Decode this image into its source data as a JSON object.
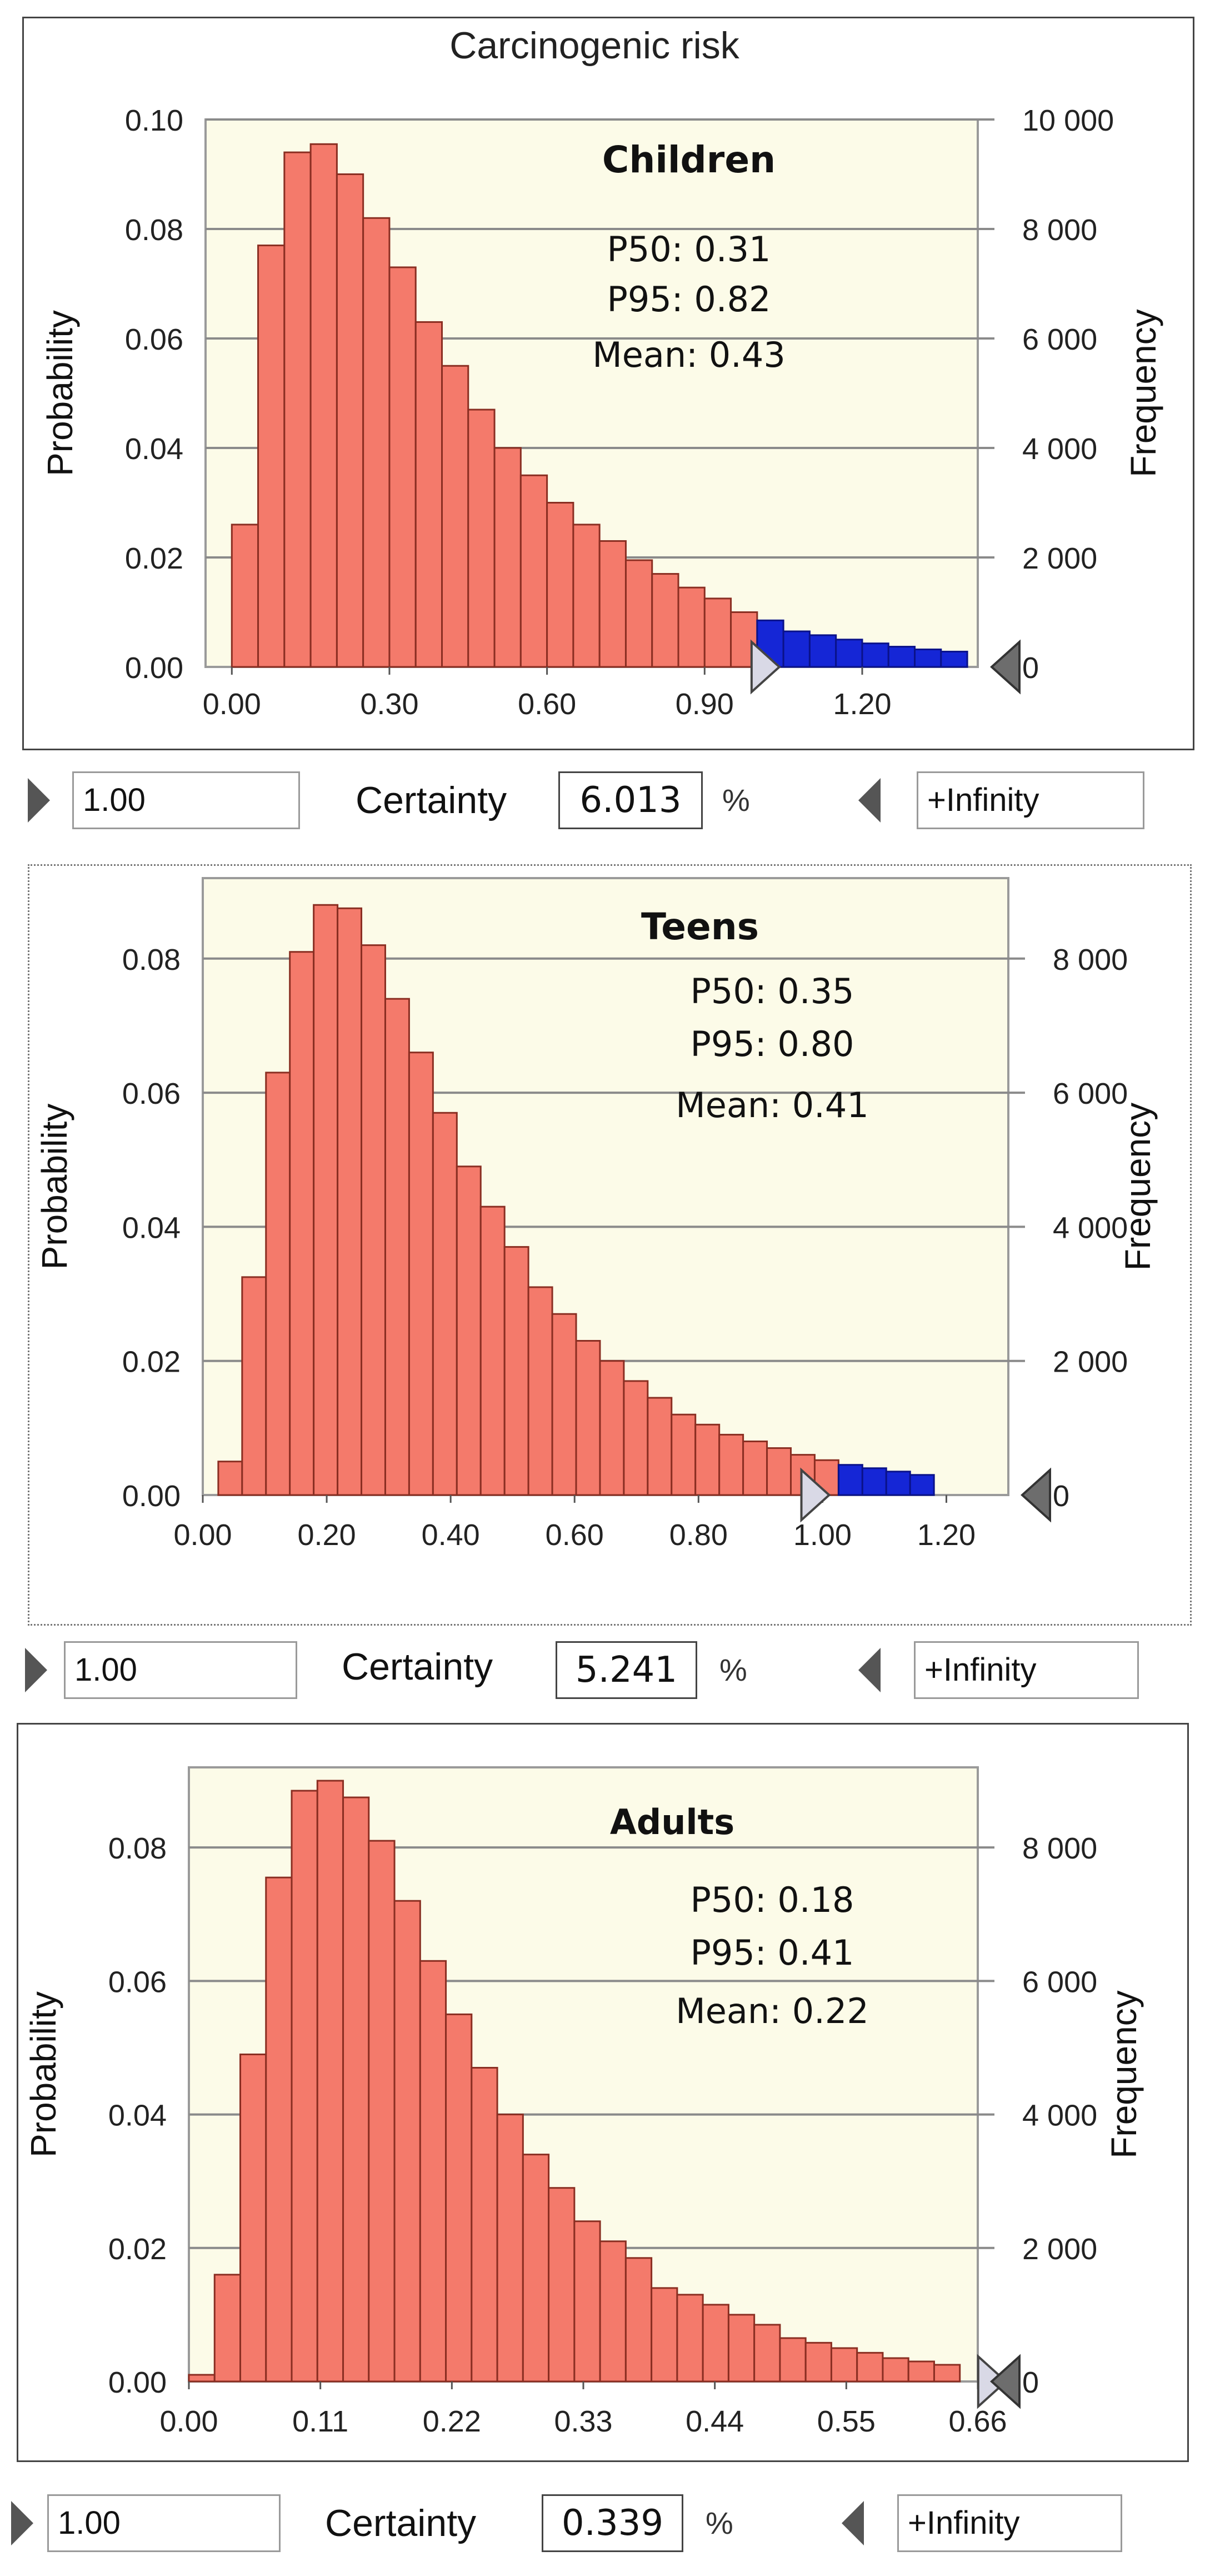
{
  "title": "Carcinogenic risk",
  "chart_data": [
    {
      "type": "bar",
      "title": "Children",
      "ylabel": "Probability",
      "y2label": "Frequency",
      "stats": [
        "P50: 0.31",
        "P95: 0.82",
        "Mean: 0.43"
      ],
      "x_ticks": [
        "0.00",
        "0.30",
        "0.60",
        "0.90",
        "1.20"
      ],
      "y_ticks": [
        "0.00",
        "0.02",
        "0.04",
        "0.06",
        "0.08",
        "0.10"
      ],
      "y2_ticks": [
        "0",
        "2 000",
        "4 000",
        "6 000",
        "8 000",
        "10 000"
      ],
      "xlim": [
        -0.05,
        1.42
      ],
      "ylim": [
        0,
        0.1
      ],
      "bin_start": 0.0,
      "bin_width": 0.05,
      "values": [
        0.026,
        0.077,
        0.094,
        0.0955,
        0.09,
        0.082,
        0.073,
        0.063,
        0.055,
        0.047,
        0.04,
        0.035,
        0.03,
        0.026,
        0.023,
        0.0195,
        0.017,
        0.0145,
        0.0125,
        0.01,
        0.0085,
        0.0065,
        0.0058,
        0.005,
        0.0043,
        0.0037,
        0.0032,
        0.0028
      ],
      "highlight_from": 1.0,
      "marker_x": 1.0
    },
    {
      "type": "bar",
      "title": "Teens",
      "ylabel": "Probability",
      "y2label": "Frequency",
      "stats": [
        "P50: 0.35",
        "P95: 0.80",
        "Mean: 0.41"
      ],
      "x_ticks": [
        "0.00",
        "0.20",
        "0.40",
        "0.60",
        "0.80",
        "1.00",
        "1.20"
      ],
      "y_ticks": [
        "0.00",
        "0.02",
        "0.04",
        "0.06",
        "0.08"
      ],
      "y2_ticks": [
        "0",
        "2 000",
        "4 000",
        "6 000",
        "8 000"
      ],
      "xlim": [
        0.0,
        1.3
      ],
      "ylim": [
        0,
        0.092
      ],
      "bin_start": 0.025,
      "bin_width": 0.0385,
      "values": [
        0.005,
        0.0325,
        0.063,
        0.081,
        0.088,
        0.0875,
        0.082,
        0.074,
        0.066,
        0.057,
        0.049,
        0.043,
        0.037,
        0.031,
        0.027,
        0.023,
        0.02,
        0.017,
        0.0145,
        0.012,
        0.0105,
        0.009,
        0.008,
        0.007,
        0.006,
        0.0052,
        0.0045,
        0.004,
        0.0035,
        0.003
      ],
      "highlight_from": 1.0,
      "marker_x": 0.975
    },
    {
      "type": "bar",
      "title": "Adults",
      "ylabel": "Probability",
      "y2label": "Frequency",
      "stats": [
        "P50: 0.18",
        "P95: 0.41",
        "Mean: 0.22"
      ],
      "x_ticks": [
        "0.00",
        "0.11",
        "0.22",
        "0.33",
        "0.44",
        "0.55",
        "0.66"
      ],
      "y_ticks": [
        "0.00",
        "0.02",
        "0.04",
        "0.06",
        "0.08"
      ],
      "y2_ticks": [
        "0",
        "2 000",
        "4 000",
        "6 000",
        "8 000"
      ],
      "xlim": [
        0.0,
        0.66
      ],
      "ylim": [
        0,
        0.092
      ],
      "bin_start": 0.0,
      "bin_width": 0.0215,
      "values": [
        0.001,
        0.016,
        0.049,
        0.0755,
        0.0885,
        0.09,
        0.0875,
        0.081,
        0.072,
        0.063,
        0.055,
        0.047,
        0.04,
        0.034,
        0.029,
        0.024,
        0.021,
        0.0185,
        0.014,
        0.013,
        0.0115,
        0.01,
        0.0085,
        0.0065,
        0.0058,
        0.005,
        0.0043,
        0.0035,
        0.003,
        0.0025
      ],
      "highlight_from": null,
      "marker_x": 0.665
    }
  ],
  "controls": [
    {
      "lower": "1.00",
      "certainty_label": "Certainty",
      "certainty": "6.013",
      "unit": "%",
      "upper": "+Infinity"
    },
    {
      "lower": "1.00",
      "certainty_label": "Certainty",
      "certainty": "5.241",
      "unit": "%",
      "upper": "+Infinity"
    },
    {
      "lower": "1.00",
      "certainty_label": "Certainty",
      "certainty": "0.339",
      "unit": "%",
      "upper": "+Infinity"
    }
  ],
  "colors": {
    "bar": "#f47a6b",
    "bar_highlight": "#1526d6",
    "plot_bg": "#fcfbe8",
    "grid": "#8a8a8a"
  }
}
